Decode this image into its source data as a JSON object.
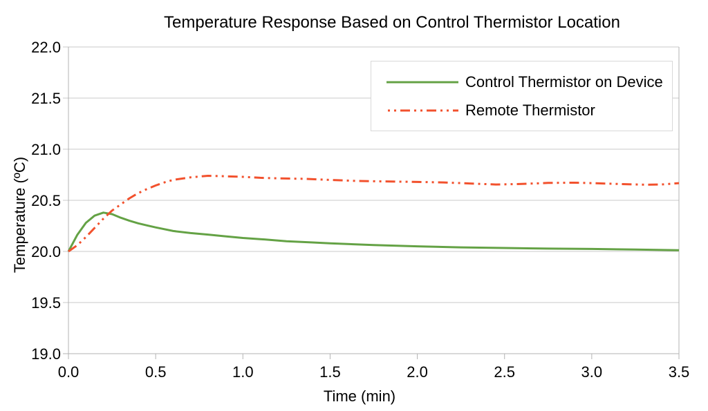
{
  "chart_data": {
    "type": "line",
    "title": "Temperature Response Based on Control Thermistor Location",
    "xlabel": "Time (min)",
    "ylabel": "Temperature (ºC)",
    "xlim": [
      0.0,
      3.5
    ],
    "ylim": [
      19.0,
      22.0
    ],
    "x_ticks": {
      "values": [
        0.0,
        0.5,
        1.0,
        1.5,
        2.0,
        2.5,
        3.0,
        3.5
      ],
      "labels": [
        "0.0",
        "0.5",
        "1.0",
        "1.5",
        "2.0",
        "2.5",
        "3.0",
        "3.5"
      ]
    },
    "y_ticks": {
      "values": [
        19.0,
        19.5,
        20.0,
        20.5,
        21.0,
        21.5,
        22.0
      ],
      "labels": [
        "19.0",
        "19.5",
        "20.0",
        "20.5",
        "21.0",
        "21.5",
        "22.0"
      ]
    },
    "grid": "horizontal",
    "legend_position": "top-right",
    "series": [
      {
        "name": "Control Thermistor on Device",
        "color": "#64a245",
        "style": "solid",
        "points": [
          [
            0.0,
            20.0
          ],
          [
            0.05,
            20.16
          ],
          [
            0.1,
            20.28
          ],
          [
            0.15,
            20.35
          ],
          [
            0.2,
            20.38
          ],
          [
            0.25,
            20.365
          ],
          [
            0.3,
            20.33
          ],
          [
            0.35,
            20.3
          ],
          [
            0.4,
            20.275
          ],
          [
            0.45,
            20.255
          ],
          [
            0.5,
            20.235
          ],
          [
            0.6,
            20.2
          ],
          [
            0.7,
            20.18
          ],
          [
            0.8,
            20.165
          ],
          [
            0.9,
            20.148
          ],
          [
            1.0,
            20.132
          ],
          [
            1.1,
            20.12
          ],
          [
            1.25,
            20.1
          ],
          [
            1.4,
            20.088
          ],
          [
            1.5,
            20.08
          ],
          [
            1.75,
            20.062
          ],
          [
            2.0,
            20.05
          ],
          [
            2.25,
            20.04
          ],
          [
            2.5,
            20.034
          ],
          [
            2.75,
            20.028
          ],
          [
            3.0,
            20.024
          ],
          [
            3.25,
            20.018
          ],
          [
            3.5,
            20.012
          ]
        ]
      },
      {
        "name": "Remote Thermistor",
        "color": "#f2512d",
        "style": "dash-dot-dot",
        "points": [
          [
            0.0,
            20.0
          ],
          [
            0.05,
            20.06
          ],
          [
            0.1,
            20.14
          ],
          [
            0.15,
            20.23
          ],
          [
            0.2,
            20.32
          ],
          [
            0.25,
            20.4
          ],
          [
            0.3,
            20.46
          ],
          [
            0.35,
            20.52
          ],
          [
            0.4,
            20.57
          ],
          [
            0.45,
            20.61
          ],
          [
            0.5,
            20.645
          ],
          [
            0.55,
            20.675
          ],
          [
            0.6,
            20.7
          ],
          [
            0.7,
            20.725
          ],
          [
            0.8,
            20.74
          ],
          [
            0.9,
            20.735
          ],
          [
            1.0,
            20.73
          ],
          [
            1.1,
            20.72
          ],
          [
            1.2,
            20.715
          ],
          [
            1.35,
            20.71
          ],
          [
            1.5,
            20.7
          ],
          [
            1.65,
            20.69
          ],
          [
            1.8,
            20.685
          ],
          [
            2.0,
            20.68
          ],
          [
            2.15,
            20.675
          ],
          [
            2.3,
            20.665
          ],
          [
            2.45,
            20.655
          ],
          [
            2.6,
            20.66
          ],
          [
            2.75,
            20.67
          ],
          [
            2.9,
            20.672
          ],
          [
            3.0,
            20.668
          ],
          [
            3.15,
            20.66
          ],
          [
            3.3,
            20.653
          ],
          [
            3.4,
            20.655
          ],
          [
            3.5,
            20.668
          ]
        ]
      }
    ]
  },
  "colors": {
    "background": "#ffffff",
    "gridline": "#c8c8c8",
    "axis": "#b3b3b3",
    "legend_border": "#d8d8d8",
    "text": "#000000"
  }
}
